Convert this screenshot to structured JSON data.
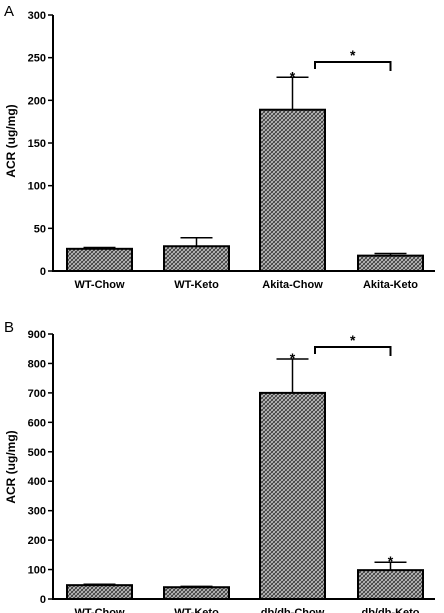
{
  "chart_data": [
    {
      "panel": "A",
      "type": "bar",
      "ylabel": "ACR (ug/mg)",
      "ylim": [
        0,
        300
      ],
      "yticks": [
        0,
        50,
        100,
        150,
        200,
        250,
        300
      ],
      "categories": [
        "WT-Chow",
        "WT-Keto",
        "Akita-Chow",
        "Akita-Keto"
      ],
      "values": [
        26,
        29,
        189,
        18
      ],
      "errors": [
        1.5,
        10,
        38,
        2.5
      ],
      "bar_stars": [
        false,
        false,
        true,
        false
      ],
      "bracket": {
        "from": 2,
        "to": 3,
        "label": "*"
      },
      "grid": false
    },
    {
      "panel": "B",
      "type": "bar",
      "ylabel": "ACR (ug/mg)",
      "ylim": [
        0,
        900
      ],
      "yticks": [
        0,
        100,
        200,
        300,
        400,
        500,
        600,
        700,
        800,
        900
      ],
      "categories": [
        "WT-Chow",
        "WT-Keto",
        "db/db-Chow",
        "db/db-Keto"
      ],
      "values": [
        47,
        40,
        700,
        98
      ],
      "errors": [
        3,
        3,
        115,
        27
      ],
      "bar_stars": [
        false,
        false,
        true,
        true
      ],
      "bracket": {
        "from": 2,
        "to": 3,
        "label": "*"
      },
      "grid": false
    }
  ]
}
